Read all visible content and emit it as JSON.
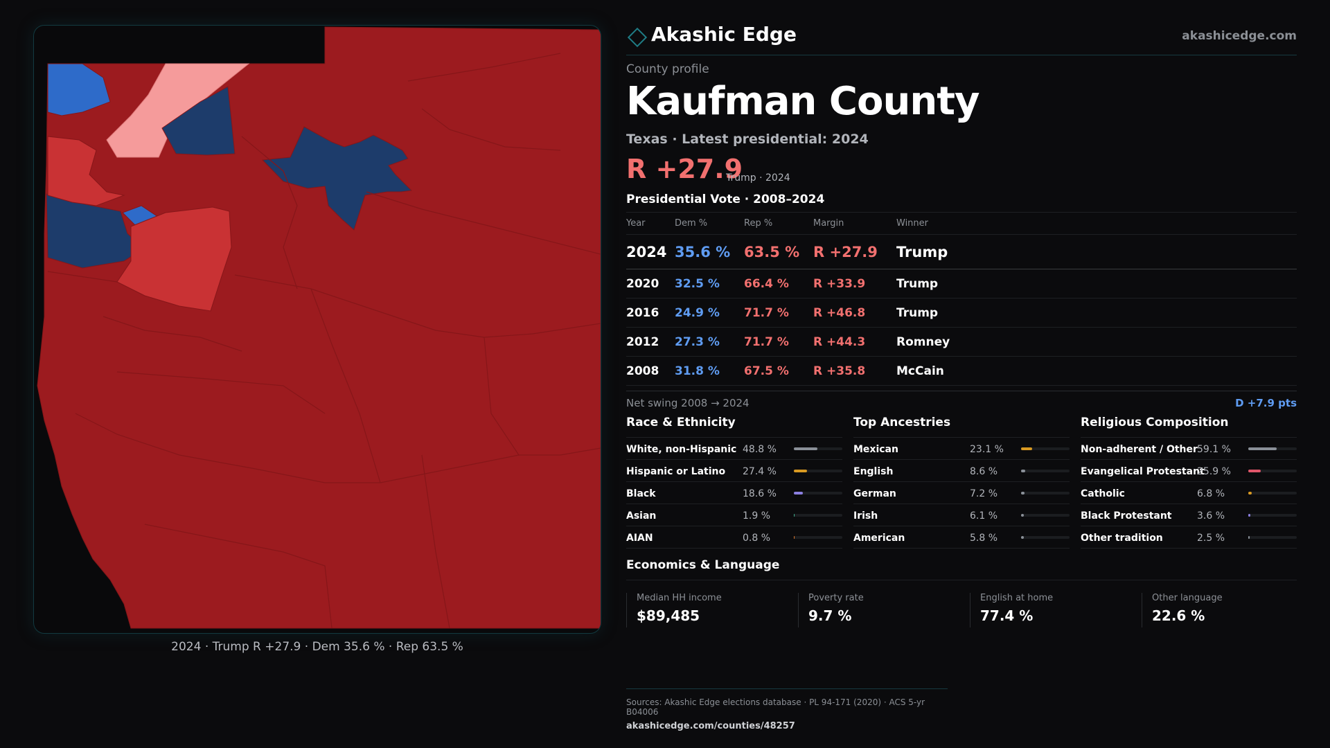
{
  "brand": {
    "name": "Akashic Edge",
    "url": "akashicedge.com"
  },
  "profile": {
    "eyebrow": "County profile",
    "county": "Kaufman County",
    "subline": "Texas · Latest presidential: 2024",
    "margin": "R +27.9",
    "winner_year": "Trump · 2024"
  },
  "vote": {
    "title": "Presidential Vote · 2008–2024",
    "headers": {
      "year": "Year",
      "dem": "Dem %",
      "rep": "Rep %",
      "margin": "Margin",
      "winner": "Winner"
    },
    "rows": [
      {
        "year": "2024",
        "dem": "35.6 %",
        "rep": "63.5 %",
        "margin": "R +27.9",
        "winner": "Trump"
      },
      {
        "year": "2020",
        "dem": "32.5 %",
        "rep": "66.4 %",
        "margin": "R +33.9",
        "winner": "Trump"
      },
      {
        "year": "2016",
        "dem": "24.9 %",
        "rep": "71.7 %",
        "margin": "R +46.8",
        "winner": "Trump"
      },
      {
        "year": "2012",
        "dem": "27.3 %",
        "rep": "71.7 %",
        "margin": "R +44.3",
        "winner": "Romney"
      },
      {
        "year": "2008",
        "dem": "31.8 %",
        "rep": "67.5 %",
        "margin": "R +35.8",
        "winner": "McCain"
      }
    ]
  },
  "swing": {
    "label": "Net swing 2008 → 2024",
    "value": "D +7.9 pts"
  },
  "race": {
    "title": "Race & Ethnicity",
    "rows": [
      {
        "name": "White, non-Hispanic",
        "pct": "48.8 %",
        "share": 0.488,
        "color": "#8a9098"
      },
      {
        "name": "Hispanic or Latino",
        "pct": "27.4 %",
        "share": 0.274,
        "color": "#d99a22"
      },
      {
        "name": "Black",
        "pct": "18.6 %",
        "share": 0.186,
        "color": "#8b7fe0"
      },
      {
        "name": "Asian",
        "pct": "1.9 %",
        "share": 0.019,
        "color": "#3fae8c"
      },
      {
        "name": "AIAN",
        "pct": "0.8 %",
        "share": 0.008,
        "color": "#d9762a"
      }
    ]
  },
  "ancestry": {
    "title": "Top Ancestries",
    "rows": [
      {
        "name": "Mexican",
        "pct": "23.1 %",
        "share": 0.231,
        "color": "#d99a22"
      },
      {
        "name": "English",
        "pct": "8.6 %",
        "share": 0.086,
        "color": "#8a9098"
      },
      {
        "name": "German",
        "pct": "7.2 %",
        "share": 0.072,
        "color": "#8a9098"
      },
      {
        "name": "Irish",
        "pct": "6.1 %",
        "share": 0.061,
        "color": "#8a9098"
      },
      {
        "name": "American",
        "pct": "5.8 %",
        "share": 0.058,
        "color": "#8a9098"
      }
    ]
  },
  "religion": {
    "title": "Religious Composition",
    "rows": [
      {
        "name": "Non-adherent / Other",
        "pct": "59.1 %",
        "share": 0.591,
        "color": "#8a9098"
      },
      {
        "name": "Evangelical Protestant",
        "pct": "25.9 %",
        "share": 0.259,
        "color": "#e0566a"
      },
      {
        "name": "Catholic",
        "pct": "6.8 %",
        "share": 0.068,
        "color": "#d99a22"
      },
      {
        "name": "Black Protestant",
        "pct": "3.6 %",
        "share": 0.036,
        "color": "#8b7fe0"
      },
      {
        "name": "Other tradition",
        "pct": "2.5 %",
        "share": 0.025,
        "color": "#8a9098"
      }
    ]
  },
  "economics": {
    "title": "Economics & Language",
    "items": [
      {
        "label": "Median HH income",
        "value": "$89,485"
      },
      {
        "label": "Poverty rate",
        "value": "9.7 %"
      },
      {
        "label": "English at home",
        "value": "77.4 %"
      },
      {
        "label": "Other language",
        "value": "22.6 %"
      }
    ]
  },
  "map": {
    "caption": "2024 · Trump R +27.9 · Dem 35.6 % · Rep 63.5 %",
    "colors": {
      "background": "#09090b",
      "strong_r": "#9c1b1f",
      "lean_r": "#c93234",
      "light_r": "#f59b9b",
      "strong_d": "#1d3c6b",
      "lean_d": "#2e6bc9"
    }
  },
  "sources": {
    "line": "Sources: Akashic Edge elections database · PL 94-171 (2020) · ACS 5-yr B04006",
    "url": "akashicedge.com/counties/48257"
  }
}
